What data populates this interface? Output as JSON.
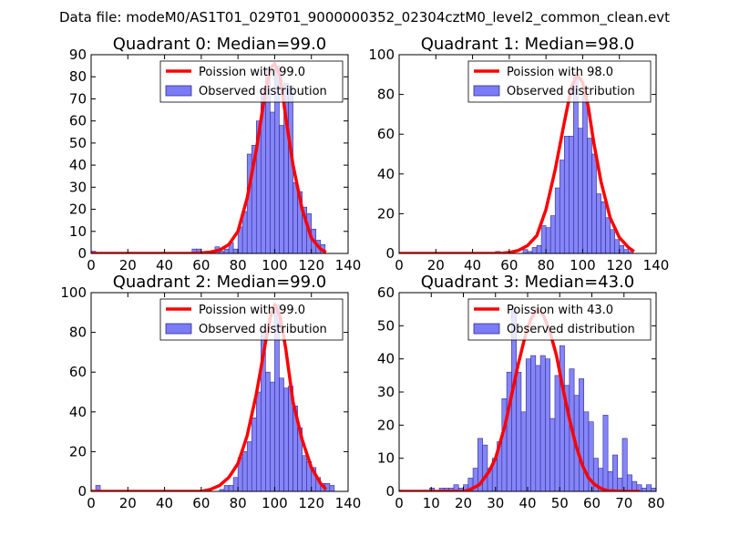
{
  "figure_title": "Data file: modeM0/AS1T01_029T01_9000000352_02304cztM0_level2_common_clean.evt",
  "colors": {
    "poisson": "#ff0000",
    "hist_fill": "#7b7bf6",
    "hist_edge": "#2e2e9a",
    "frame": "#000000"
  },
  "chart_data": [
    {
      "type": "bar",
      "title": "Quadrant 0: Median=99.0",
      "xlim": [
        0,
        140
      ],
      "ylim": [
        0,
        90
      ],
      "xticks": [
        0,
        20,
        40,
        60,
        80,
        100,
        120,
        140
      ],
      "yticks": [
        0,
        10,
        20,
        30,
        40,
        50,
        60,
        70,
        80,
        90
      ],
      "bin_width": 2.5,
      "bins": [
        [
          0,
          1
        ],
        [
          55,
          2
        ],
        [
          57.5,
          2
        ],
        [
          67.5,
          3
        ],
        [
          70,
          1
        ],
        [
          72.5,
          2
        ],
        [
          75,
          5
        ],
        [
          77.5,
          2
        ],
        [
          80,
          12
        ],
        [
          82.5,
          19
        ],
        [
          85,
          45
        ],
        [
          87.5,
          49
        ],
        [
          90,
          60
        ],
        [
          92.5,
          74
        ],
        [
          95,
          84
        ],
        [
          97.5,
          64
        ],
        [
          100,
          85
        ],
        [
          102.5,
          58
        ],
        [
          105,
          77
        ],
        [
          107.5,
          76
        ],
        [
          110,
          32
        ],
        [
          112.5,
          28
        ],
        [
          115,
          21
        ],
        [
          117.5,
          18
        ],
        [
          120,
          11
        ],
        [
          122.5,
          6
        ],
        [
          125,
          4
        ]
      ],
      "poisson_curve": [
        [
          0,
          0
        ],
        [
          20,
          0
        ],
        [
          40,
          0
        ],
        [
          55,
          0
        ],
        [
          60,
          0.2
        ],
        [
          65,
          0.6
        ],
        [
          70,
          1.5
        ],
        [
          75,
          4
        ],
        [
          80,
          10
        ],
        [
          85,
          25
        ],
        [
          90,
          47
        ],
        [
          95,
          74
        ],
        [
          98,
          84
        ],
        [
          100,
          86
        ],
        [
          103,
          80
        ],
        [
          106,
          62
        ],
        [
          110,
          40
        ],
        [
          115,
          20
        ],
        [
          120,
          7
        ],
        [
          125,
          2
        ],
        [
          128,
          0.5
        ]
      ],
      "legend": {
        "line_label": "Poission with 99.0",
        "hist_label": "Observed distribution",
        "position": "upper right"
      }
    },
    {
      "type": "bar",
      "title": "Quadrant 1: Median=98.0",
      "xlim": [
        0,
        140
      ],
      "ylim": [
        0,
        100
      ],
      "xticks": [
        0,
        20,
        40,
        60,
        80,
        100,
        120,
        140
      ],
      "yticks": [
        0,
        20,
        40,
        60,
        80,
        100
      ],
      "bin_width": 2.5,
      "bins": [
        [
          52.5,
          1
        ],
        [
          60,
          1
        ],
        [
          67.5,
          2
        ],
        [
          70,
          1
        ],
        [
          72.5,
          3
        ],
        [
          75,
          4
        ],
        [
          77.5,
          14
        ],
        [
          80,
          13
        ],
        [
          82.5,
          19
        ],
        [
          85,
          33
        ],
        [
          87.5,
          47
        ],
        [
          90,
          59
        ],
        [
          92.5,
          59
        ],
        [
          95,
          91
        ],
        [
          97.5,
          63
        ],
        [
          100,
          80
        ],
        [
          102.5,
          58
        ],
        [
          105,
          50
        ],
        [
          107.5,
          30
        ],
        [
          110,
          26
        ],
        [
          112.5,
          18
        ],
        [
          115,
          12
        ],
        [
          117.5,
          7
        ],
        [
          120,
          4
        ],
        [
          122.5,
          2
        ],
        [
          125,
          1
        ]
      ],
      "poisson_curve": [
        [
          0,
          0
        ],
        [
          20,
          0
        ],
        [
          40,
          0
        ],
        [
          55,
          0
        ],
        [
          60,
          0.5
        ],
        [
          65,
          1.5
        ],
        [
          70,
          4
        ],
        [
          75,
          9
        ],
        [
          80,
          22
        ],
        [
          85,
          42
        ],
        [
          90,
          66
        ],
        [
          94,
          84
        ],
        [
          97,
          90
        ],
        [
          100,
          86
        ],
        [
          103,
          74
        ],
        [
          106,
          56
        ],
        [
          110,
          36
        ],
        [
          115,
          18
        ],
        [
          120,
          8
        ],
        [
          125,
          3
        ],
        [
          128,
          1
        ]
      ],
      "legend": {
        "line_label": "Poission with 98.0",
        "hist_label": "Observed distribution",
        "position": "upper right"
      }
    },
    {
      "type": "bar",
      "title": "Quadrant 2: Median=99.0",
      "xlim": [
        0,
        140
      ],
      "ylim": [
        0,
        100
      ],
      "xticks": [
        0,
        20,
        40,
        60,
        80,
        100,
        120,
        140
      ],
      "yticks": [
        0,
        20,
        40,
        60,
        80,
        100
      ],
      "bin_width": 2.5,
      "bins": [
        [
          2.5,
          3
        ],
        [
          62.5,
          1
        ],
        [
          70,
          1
        ],
        [
          72.5,
          3
        ],
        [
          75,
          3
        ],
        [
          77.5,
          7
        ],
        [
          80,
          17
        ],
        [
          82.5,
          20
        ],
        [
          85,
          25
        ],
        [
          87.5,
          37
        ],
        [
          90,
          50
        ],
        [
          92.5,
          80
        ],
        [
          95,
          60
        ],
        [
          97.5,
          55
        ],
        [
          100,
          94
        ],
        [
          102.5,
          57
        ],
        [
          105,
          52
        ],
        [
          107.5,
          53
        ],
        [
          110,
          43
        ],
        [
          112.5,
          32
        ],
        [
          115,
          18
        ],
        [
          117.5,
          15
        ],
        [
          120,
          12
        ],
        [
          122.5,
          7
        ],
        [
          125,
          4
        ],
        [
          127.5,
          4
        ],
        [
          130,
          3
        ]
      ],
      "poisson_curve": [
        [
          0,
          0
        ],
        [
          20,
          0
        ],
        [
          40,
          0
        ],
        [
          60,
          0
        ],
        [
          65,
          1
        ],
        [
          70,
          3
        ],
        [
          75,
          7
        ],
        [
          80,
          14
        ],
        [
          85,
          28
        ],
        [
          90,
          49
        ],
        [
          95,
          75
        ],
        [
          98,
          89
        ],
        [
          100,
          94
        ],
        [
          103,
          88
        ],
        [
          106,
          72
        ],
        [
          110,
          45
        ],
        [
          115,
          26
        ],
        [
          120,
          12
        ],
        [
          125,
          4
        ],
        [
          128,
          1
        ]
      ],
      "legend": {
        "line_label": "Poission with 99.0",
        "hist_label": "Observed distribution",
        "position": "upper right"
      }
    },
    {
      "type": "bar",
      "title": "Quadrant 3: Median=43.0",
      "xlim": [
        0,
        80
      ],
      "ylim": [
        0,
        60
      ],
      "xticks": [
        0,
        10,
        20,
        30,
        40,
        50,
        60,
        70,
        80
      ],
      "yticks": [
        0,
        10,
        20,
        30,
        40,
        50,
        60
      ],
      "bin_width": 1.5,
      "bins": [
        [
          9.5,
          1
        ],
        [
          12.5,
          1
        ],
        [
          14,
          1
        ],
        [
          15.5,
          1
        ],
        [
          17,
          2
        ],
        [
          18.5,
          1
        ],
        [
          20,
          2
        ],
        [
          21.5,
          4
        ],
        [
          23,
          7
        ],
        [
          24.5,
          16
        ],
        [
          26,
          14
        ],
        [
          27.5,
          7
        ],
        [
          29,
          10
        ],
        [
          30.5,
          15
        ],
        [
          32,
          28
        ],
        [
          33.5,
          36
        ],
        [
          35,
          55
        ],
        [
          36.5,
          36
        ],
        [
          38,
          24
        ],
        [
          39.5,
          40
        ],
        [
          41,
          41
        ],
        [
          42.5,
          38
        ],
        [
          44,
          41
        ],
        [
          45.5,
          40
        ],
        [
          47,
          22
        ],
        [
          48.5,
          35
        ],
        [
          50,
          44
        ],
        [
          51.5,
          32
        ],
        [
          53,
          37
        ],
        [
          54.5,
          29
        ],
        [
          56,
          34
        ],
        [
          57.5,
          24
        ],
        [
          59,
          21
        ],
        [
          60.5,
          10
        ],
        [
          62,
          7
        ],
        [
          63.5,
          23
        ],
        [
          65,
          6
        ],
        [
          66.5,
          11
        ],
        [
          68,
          4
        ],
        [
          69.5,
          16
        ],
        [
          71,
          5
        ],
        [
          72.5,
          3
        ],
        [
          74,
          2
        ],
        [
          75.5,
          1
        ],
        [
          77,
          2
        ],
        [
          78.5,
          1
        ]
      ],
      "poisson_curve": [
        [
          0,
          0
        ],
        [
          10,
          0
        ],
        [
          15,
          0
        ],
        [
          20,
          0
        ],
        [
          22,
          0.5
        ],
        [
          25,
          2
        ],
        [
          28,
          6
        ],
        [
          30,
          10
        ],
        [
          33,
          20
        ],
        [
          35,
          29
        ],
        [
          37,
          38
        ],
        [
          39,
          46
        ],
        [
          41,
          52
        ],
        [
          43,
          55
        ],
        [
          45,
          53
        ],
        [
          47,
          48
        ],
        [
          49,
          41
        ],
        [
          51,
          31
        ],
        [
          53,
          22
        ],
        [
          55,
          14
        ],
        [
          57,
          8
        ],
        [
          59,
          4
        ],
        [
          61,
          2
        ],
        [
          63,
          0.8
        ],
        [
          65,
          0.2
        ],
        [
          70,
          0
        ],
        [
          75,
          0
        ]
      ],
      "legend": {
        "line_label": "Poission with 43.0",
        "hist_label": "Observed distribution",
        "position": "upper right"
      }
    }
  ]
}
